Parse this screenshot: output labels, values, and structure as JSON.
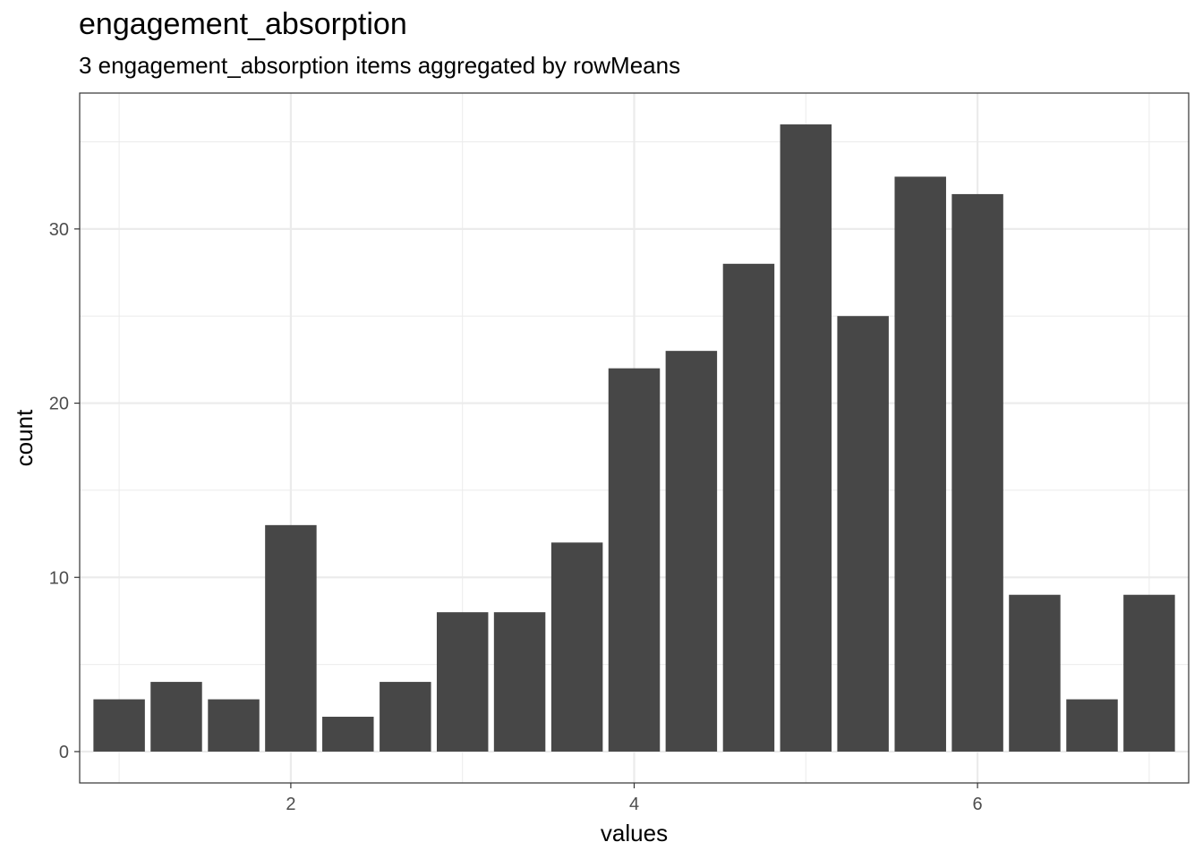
{
  "chart_data": {
    "type": "bar",
    "title": "engagement_absorption",
    "subtitle": "3 engagement_absorption items aggregated by rowMeans",
    "xlabel": "values",
    "ylabel": "count",
    "x": [
      1.0,
      1.333,
      1.667,
      2.0,
      2.333,
      2.667,
      3.0,
      3.333,
      3.667,
      4.0,
      4.333,
      4.667,
      5.0,
      5.333,
      5.667,
      6.0,
      6.333,
      6.667,
      7.0
    ],
    "values": [
      3,
      4,
      3,
      13,
      2,
      4,
      8,
      8,
      12,
      22,
      23,
      28,
      36,
      25,
      33,
      32,
      9,
      3,
      9
    ],
    "xlim": [
      0.77,
      7.23
    ],
    "ylim": [
      -1.8,
      37.8
    ],
    "xticks": [
      2,
      4,
      6
    ],
    "yticks": [
      0,
      10,
      20,
      30
    ],
    "grid": true,
    "colors": {
      "bar": "#474747",
      "grid": "#ebebeb",
      "panel_border": "#333333"
    }
  }
}
